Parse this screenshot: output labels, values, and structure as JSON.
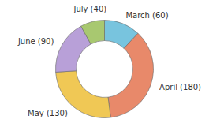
{
  "chart_data": {
    "type": "pie",
    "categories": [
      "March",
      "April",
      "May",
      "June",
      "July"
    ],
    "values": [
      60,
      180,
      130,
      90,
      40
    ],
    "value_labels": [
      "March (60)",
      "April (180)",
      "May (130)",
      "June (90)",
      "July (40)"
    ],
    "data_labels": true,
    "colors": [
      "#78c4de",
      "#e8896a",
      "#f0c855",
      "#b8a0d8",
      "#a8c870"
    ]
  }
}
